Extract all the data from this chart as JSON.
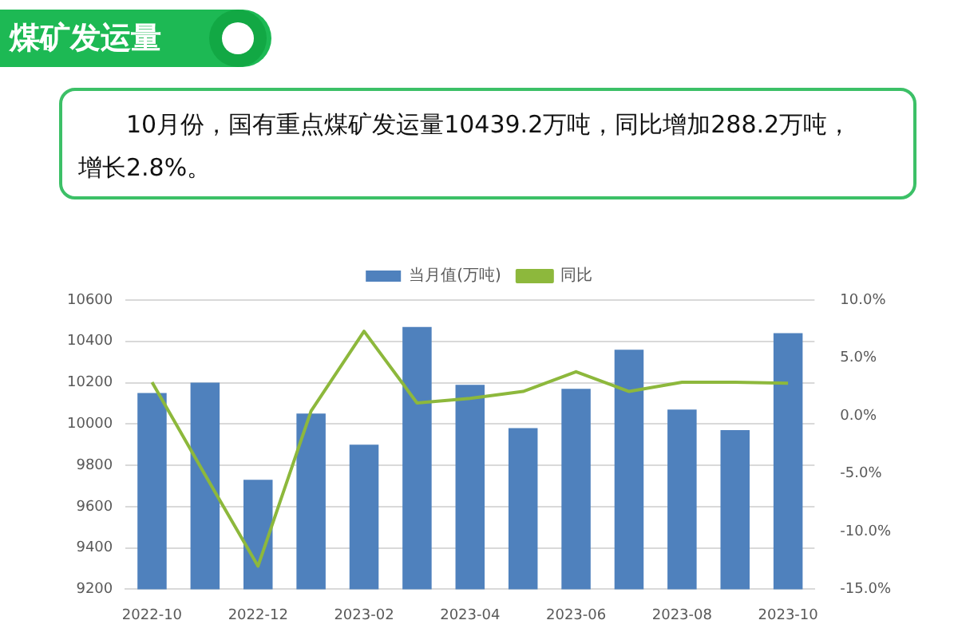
{
  "chart_data": {
    "type": "bar",
    "title": "煤矿发运量",
    "subtitle": "10月份，国有重点煤矿发运量10439.2万吨，同比增加288.2万吨，增长2.8%。",
    "categories": [
      "2022-10",
      null,
      "2022-12",
      null,
      "2023-02",
      null,
      "2023-04",
      null,
      "2023-06",
      null,
      "2023-08",
      null,
      "2023-10"
    ],
    "series": [
      {
        "name": "当月值(万吨)",
        "color": "#4f81bd",
        "values": [
          10150,
          10200,
          9730,
          10050,
          9900,
          10470,
          10190,
          9980,
          10170,
          10360,
          10070,
          9970,
          10440
        ]
      },
      {
        "name": "同比",
        "type": "line",
        "axis": "y2",
        "color": "#8db83c",
        "values": [
          2.9,
          -5.1,
          -13.0,
          0.4,
          7.3,
          1.1,
          1.5,
          2.1,
          3.8,
          2.1,
          2.9,
          2.9,
          2.8
        ]
      }
    ],
    "ylim": [
      9200,
      10600
    ],
    "yticks": [
      9200,
      9400,
      9600,
      9800,
      10000,
      10200,
      10400,
      10600
    ],
    "y2lim": [
      -15,
      10
    ],
    "y2ticks": [
      {
        "value": -15,
        "label": "-15.0%"
      },
      {
        "value": -10,
        "label": "-10.0%"
      },
      {
        "value": -5,
        "label": "-5.0%"
      },
      {
        "value": 0,
        "label": "0.0%"
      },
      {
        "value": 5,
        "label": "5.0%"
      },
      {
        "value": 10,
        "label": "10.0%"
      }
    ],
    "grid": "y",
    "legend": "top",
    "marker": "none",
    "line_style": "solid"
  }
}
